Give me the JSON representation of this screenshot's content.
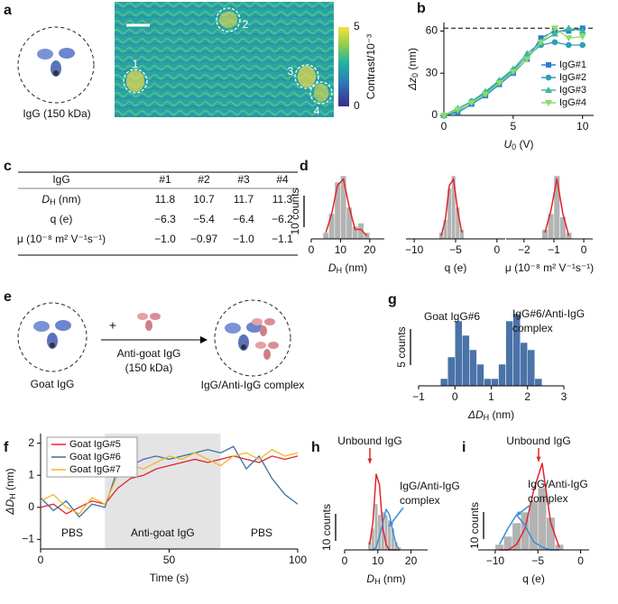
{
  "panel_labels": [
    "a",
    "b",
    "c",
    "d",
    "e",
    "f",
    "g",
    "h",
    "i"
  ],
  "panel_a": {
    "caption": "IgG (150 kDa)",
    "spots": [
      "1",
      "2",
      "3",
      "4"
    ],
    "colorbar": {
      "label": "Contrast/10⁻³",
      "lim": [
        0,
        5
      ]
    }
  },
  "table": {
    "header": [
      "IgG",
      "#1",
      "#2",
      "#3",
      "#4"
    ],
    "rows": [
      [
        [
          "D",
          "H",
          " (nm)"
        ],
        "11.8",
        "10.7",
        "11.7",
        "11.3"
      ],
      [
        "q (e)",
        "−6.3",
        "−5.4",
        "−6.4",
        "−6.2"
      ],
      [
        "μ (10⁻⁸ m² V⁻¹s⁻¹)",
        "−1.0",
        "−0.97",
        "−1.0",
        "−1.1"
      ]
    ]
  },
  "panel_e": {
    "left": "Goat IgG",
    "plus": "+",
    "reagent": [
      "Anti-goat IgG",
      "(150 kDa)"
    ],
    "right": "IgG/Anti-IgG complex"
  },
  "chart_data": [
    {
      "type": "line",
      "x": [
        0,
        1,
        2,
        3,
        4,
        5,
        6,
        7,
        8,
        9,
        10
      ],
      "xlim": [
        0,
        10.8
      ],
      "xticks": [
        0,
        5,
        10
      ],
      "ylim": [
        0,
        66
      ],
      "yticks": [
        0,
        30,
        60
      ],
      "xlabel": [
        "U",
        "0",
        " (V)"
      ],
      "ylabel": [
        "Δz",
        "0",
        " (nm)"
      ],
      "hline": 62,
      "legend": "lower right",
      "series": [
        {
          "name": "IgG#1",
          "color": "#2a7fd4",
          "marker": "square",
          "values": [
            0,
            2,
            8,
            14,
            22,
            30,
            40,
            55,
            60,
            60,
            62
          ]
        },
        {
          "name": "IgG#2",
          "color": "#2ca0b3",
          "marker": "circle",
          "values": [
            0,
            3,
            10,
            16,
            24,
            32,
            42,
            50,
            52,
            50,
            50
          ]
        },
        {
          "name": "IgG#3",
          "color": "#3cb89a",
          "marker": "triangle-up",
          "values": [
            0,
            5,
            10,
            17,
            25,
            33,
            44,
            52,
            58,
            62,
            60
          ]
        },
        {
          "name": "IgG#4",
          "color": "#8bdc6a",
          "marker": "triangle-down",
          "values": [
            0,
            4,
            9,
            15,
            23,
            31,
            40,
            52,
            62,
            55,
            56
          ]
        }
      ]
    },
    {
      "type": "histogram",
      "bins": [
        4,
        6,
        8,
        10,
        12,
        14,
        16,
        18,
        20
      ],
      "counts": [
        2,
        8,
        18,
        20,
        10,
        4,
        5,
        2
      ],
      "color": "#b3b3b3",
      "xlim": [
        0,
        25
      ],
      "xticks": [
        0,
        10,
        20
      ],
      "xlabel": [
        "D",
        "H",
        " (nm)"
      ],
      "fits": [
        {
          "color": "#e0252a",
          "values": [
            2,
            8,
            17,
            19,
            10,
            3,
            3,
            1
          ]
        }
      ],
      "scale_bar": {
        "value": 10,
        "label": "10 counts"
      }
    },
    {
      "type": "histogram",
      "bins": [
        -7,
        -6.5,
        -6,
        -5.5,
        -5,
        -4.5,
        -4
      ],
      "counts": [
        2,
        6,
        16,
        20,
        10,
        3
      ],
      "color": "#b3b3b3",
      "xlim": [
        -11,
        1
      ],
      "xticks": [
        {
          "value": -10,
          "label": "−10"
        },
        {
          "value": -5,
          "label": "−5"
        },
        0
      ],
      "xlabel": "q (e)",
      "fits": [
        {
          "color": "#e0252a",
          "values": [
            1,
            6,
            17,
            19,
            9,
            2
          ]
        }
      ]
    },
    {
      "type": "histogram",
      "bins": [
        -1.4,
        -1.2,
        -1,
        -0.8,
        -0.6,
        -0.4
      ],
      "counts": [
        3,
        8,
        20,
        7,
        2
      ],
      "color": "#b3b3b3",
      "xlim": [
        -2.6,
        0.3
      ],
      "xticks": [
        {
          "value": -2,
          "label": "−2"
        },
        {
          "value": -1,
          "label": "−1"
        },
        0
      ],
      "xlabel": "μ (10⁻⁸ m² V⁻¹s⁻¹)",
      "fits": [
        {
          "color": "#e0252a",
          "values": [
            2,
            9,
            19,
            8,
            1
          ]
        }
      ]
    },
    {
      "type": "histogram",
      "bins": [
        -0.4,
        -0.2,
        0,
        0.2,
        0.4,
        0.6,
        0.8,
        1,
        1.2,
        1.4,
        1.6,
        1.8,
        2,
        2.2,
        2.4
      ],
      "counts": [
        1,
        4,
        9,
        7,
        5,
        3,
        1,
        1,
        3,
        9,
        10,
        6,
        5,
        1
      ],
      "color": "#4a73a8",
      "xlim": [
        -1,
        3
      ],
      "xticks": [
        {
          "value": -1,
          "label": "−1"
        },
        0,
        1,
        2,
        3
      ],
      "xlabel": [
        "ΔD",
        "H",
        " (nm)"
      ],
      "annotations": [
        "Goat IgG#6",
        "IgG#6/Anti-IgG",
        "complex"
      ],
      "scale_bar": {
        "value": 5,
        "label": "5 counts"
      }
    },
    {
      "type": "line",
      "x": [
        0,
        5,
        10,
        15,
        20,
        25,
        30,
        35,
        40,
        45,
        50,
        55,
        60,
        65,
        70,
        75,
        80,
        85,
        90,
        95,
        100
      ],
      "xlim": [
        0,
        100
      ],
      "xticks": [
        0,
        50,
        100
      ],
      "ylim": [
        -1.3,
        2.3
      ],
      "yticks": [
        {
          "value": -1,
          "label": "−1"
        },
        0,
        1,
        2
      ],
      "xlabel": "Time (s)",
      "ylabel": [
        "ΔD",
        "H",
        " (nm)"
      ],
      "shade": {
        "range": [
          25,
          70
        ],
        "label": "Anti-goat IgG"
      },
      "annotations": [
        "PBS",
        "PBS"
      ],
      "legend": "upper left",
      "series": [
        {
          "name": "Goat IgG#5",
          "color": "#e0252a",
          "values": [
            0,
            0.1,
            -0.2,
            0,
            0.2,
            0.1,
            0.6,
            0.9,
            1.0,
            1.2,
            1.3,
            1.4,
            1.5,
            1.4,
            1.5,
            1.6,
            1.5,
            1.4,
            1.6,
            1.5,
            1.6
          ]
        },
        {
          "name": "Goat IgG#6",
          "color": "#3b6ea5",
          "values": [
            0.3,
            -0.1,
            0.2,
            -0.3,
            0.1,
            0,
            1.2,
            1.3,
            1.5,
            1.6,
            1.5,
            1.6,
            1.7,
            1.8,
            1.7,
            1.9,
            1.2,
            1.6,
            0.9,
            0.4,
            0.1
          ]
        },
        {
          "name": "Goat IgG#7",
          "color": "#f2b824",
          "values": [
            0.2,
            0.4,
            0,
            -0.2,
            0.3,
            0.1,
            1.0,
            1.3,
            1.2,
            1.4,
            1.6,
            1.5,
            1.7,
            1.5,
            1.3,
            1.6,
            1.7,
            1.5,
            1.8,
            1.6,
            1.7
          ]
        }
      ]
    },
    {
      "type": "histogram",
      "bins": [
        7,
        8,
        9,
        10,
        11,
        12,
        13,
        14,
        15,
        16,
        17
      ],
      "counts": [
        3,
        8,
        17,
        13,
        14,
        13,
        11,
        8,
        3,
        1
      ],
      "color": "#b3b3b3",
      "xlim": [
        0,
        25
      ],
      "xticks": [
        0,
        10,
        20
      ],
      "xlabel": [
        "D",
        "H",
        " (nm)"
      ],
      "fits": [
        {
          "color": "#e0252a",
          "values": [
            2,
            10,
            28,
            24,
            8,
            2,
            0,
            0,
            0,
            0
          ]
        },
        {
          "color": "#3a8fd8",
          "values": [
            0,
            0,
            1,
            5,
            10,
            15,
            13,
            7,
            2,
            0
          ]
        }
      ],
      "annotations": [
        "Unbound IgG",
        "IgG/Anti-IgG",
        "complex"
      ],
      "scale_bar": {
        "value": 10,
        "label": "10 counts"
      }
    },
    {
      "type": "histogram",
      "bins": [
        -10,
        -9,
        -8,
        -7,
        -6,
        -5,
        -4,
        -3,
        -2
      ],
      "counts": [
        2,
        5,
        10,
        14,
        18,
        23,
        12,
        2
      ],
      "color": "#b3b3b3",
      "xlim": [
        -12,
        1
      ],
      "xticks": [
        {
          "value": -10,
          "label": "−10"
        },
        {
          "value": -5,
          "label": "−5"
        },
        0
      ],
      "xlabel": "q (e)",
      "fits": [
        {
          "color": "#e0252a",
          "values": [
            0,
            0,
            2,
            8,
            22,
            32,
            10,
            1
          ]
        },
        {
          "color": "#3a8fd8",
          "values": [
            2,
            8,
            13,
            9,
            3,
            1,
            0,
            0
          ]
        }
      ],
      "annotations": [
        "Unbound IgG",
        "IgG/Anti-IgG",
        "complex"
      ],
      "scale_bar": {
        "value": 10,
        "label": "10 counts"
      }
    }
  ]
}
